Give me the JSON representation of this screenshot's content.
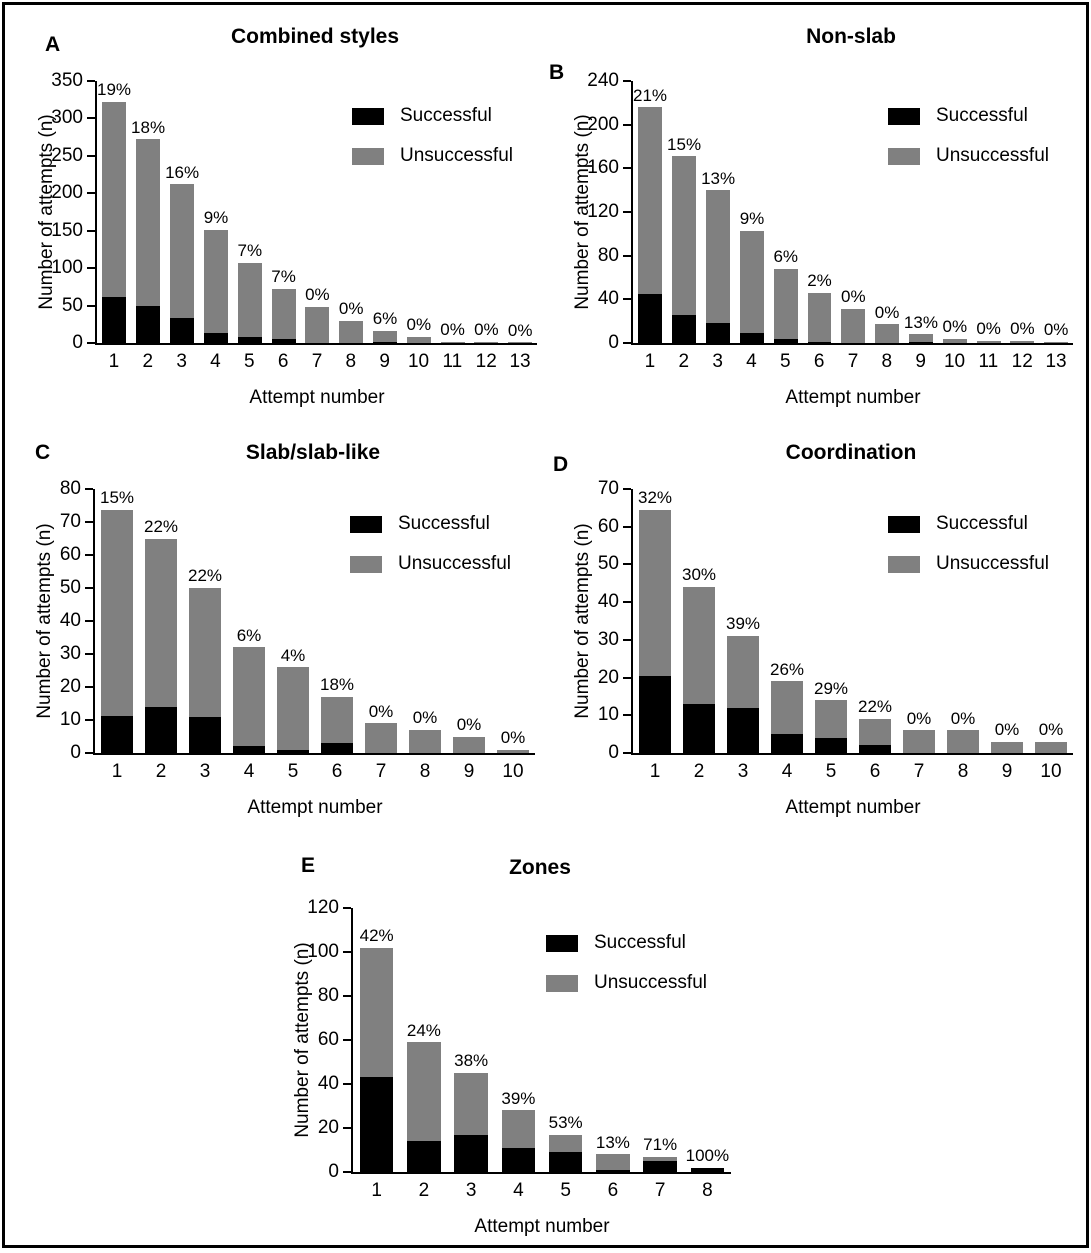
{
  "figure": {
    "background": "#ffffff",
    "border_color": "#000000",
    "colors": {
      "successful": "#000000",
      "unsuccessful": "#808080"
    },
    "legend": {
      "successful_label": "Successful",
      "unsuccessful_label": "Unsuccessful"
    }
  },
  "chart_data": [
    {
      "type": "bar",
      "stacked": true,
      "panel_label": "A",
      "title": "Combined styles",
      "xlabel": "Attempt number",
      "ylabel": "Number of attempts (n)",
      "ylim": [
        0,
        350
      ],
      "ytick_step": 50,
      "grid": false,
      "legend_position": "top-right",
      "categories": [
        "1",
        "2",
        "3",
        "4",
        "5",
        "6",
        "7",
        "8",
        "9",
        "10",
        "11",
        "12",
        "13"
      ],
      "series": [
        {
          "name": "Successful",
          "color": "#000000",
          "values": [
            64,
            49,
            33,
            13,
            8,
            5,
            0,
            0,
            1,
            0,
            0,
            0,
            0
          ]
        },
        {
          "name": "Unsuccessful",
          "color": "#808080",
          "values": [
            272,
            223,
            179,
            138,
            99,
            67,
            48,
            30,
            15,
            8,
            2,
            2,
            1
          ]
        }
      ],
      "totals": [
        336,
        272,
        212,
        151,
        107,
        72,
        48,
        30,
        16,
        8,
        2,
        2,
        1
      ],
      "percent_labels": [
        "19%",
        "18%",
        "16%",
        "9%",
        "7%",
        "7%",
        "0%",
        "0%",
        "6%",
        "0%",
        "0%",
        "0%",
        "0%"
      ]
    },
    {
      "type": "bar",
      "stacked": true,
      "panel_label": "B",
      "title": "Non-slab",
      "xlabel": "Attempt number",
      "ylabel": "Number of attempts (n)",
      "ylim": [
        0,
        240
      ],
      "ytick_step": 40,
      "grid": false,
      "legend_position": "top-right",
      "categories": [
        "1",
        "2",
        "3",
        "4",
        "5",
        "6",
        "7",
        "8",
        "9",
        "10",
        "11",
        "12",
        "13"
      ],
      "series": [
        {
          "name": "Successful",
          "color": "#000000",
          "values": [
            45,
            26,
            18,
            9,
            4,
            1,
            0,
            0,
            1,
            0,
            0,
            0,
            0
          ]
        },
        {
          "name": "Unsuccessful",
          "color": "#808080",
          "values": [
            171,
            145,
            122,
            94,
            64,
            45,
            31,
            17,
            7,
            4,
            2,
            2,
            1
          ]
        }
      ],
      "totals": [
        216,
        171,
        140,
        103,
        68,
        46,
        31,
        17,
        8,
        4,
        2,
        2,
        1
      ],
      "percent_labels": [
        "21%",
        "15%",
        "13%",
        "9%",
        "6%",
        "2%",
        "0%",
        "0%",
        "13%",
        "0%",
        "0%",
        "0%",
        "0%"
      ]
    },
    {
      "type": "bar",
      "stacked": true,
      "panel_label": "C",
      "title": "Slab/slab-like",
      "xlabel": "Attempt number",
      "ylabel": "Number of attempts (n)",
      "ylim": [
        0,
        80
      ],
      "ytick_step": 10,
      "grid": false,
      "legend_position": "top-right",
      "categories": [
        "1",
        "2",
        "3",
        "4",
        "5",
        "6",
        "7",
        "8",
        "9",
        "10"
      ],
      "series": [
        {
          "name": "Successful",
          "color": "#000000",
          "values": [
            12,
            14,
            11,
            2,
            1,
            3,
            0,
            0,
            0,
            0
          ]
        },
        {
          "name": "Unsuccessful",
          "color": "#808080",
          "values": [
            66,
            51,
            39,
            30,
            25,
            14,
            9,
            7,
            5,
            1
          ]
        }
      ],
      "totals": [
        78,
        65,
        50,
        32,
        26,
        17,
        9,
        7,
        5,
        1
      ],
      "percent_labels": [
        "15%",
        "22%",
        "22%",
        "6%",
        "4%",
        "18%",
        "0%",
        "0%",
        "0%",
        "0%"
      ]
    },
    {
      "type": "bar",
      "stacked": true,
      "panel_label": "D",
      "title": "Coordination",
      "xlabel": "Attempt number",
      "ylabel": "Number of attempts (n)",
      "ylim": [
        0,
        70
      ],
      "ytick_step": 10,
      "grid": false,
      "legend_position": "top-right",
      "categories": [
        "1",
        "2",
        "3",
        "4",
        "5",
        "6",
        "7",
        "8",
        "9",
        "10"
      ],
      "series": [
        {
          "name": "Successful",
          "color": "#000000",
          "values": [
            21,
            13,
            12,
            5,
            4,
            2,
            0,
            0,
            0,
            0
          ]
        },
        {
          "name": "Unsuccessful",
          "color": "#808080",
          "values": [
            45,
            31,
            19,
            14,
            10,
            7,
            6,
            6,
            3,
            3
          ]
        }
      ],
      "totals": [
        66,
        44,
        31,
        19,
        14,
        9,
        6,
        6,
        3,
        3
      ],
      "percent_labels": [
        "32%",
        "30%",
        "39%",
        "26%",
        "29%",
        "22%",
        "0%",
        "0%",
        "0%",
        "0%"
      ]
    },
    {
      "type": "bar",
      "stacked": true,
      "panel_label": "E",
      "title": "Zones",
      "xlabel": "Attempt number",
      "ylabel": "Number of attempts (n)",
      "ylim": [
        0,
        120
      ],
      "ytick_step": 20,
      "grid": false,
      "legend_position": "top-right",
      "categories": [
        "1",
        "2",
        "3",
        "4",
        "5",
        "6",
        "7",
        "8"
      ],
      "series": [
        {
          "name": "Successful",
          "color": "#000000",
          "values": [
            43,
            14,
            17,
            11,
            9,
            1,
            5,
            2
          ]
        },
        {
          "name": "Unsuccessful",
          "color": "#808080",
          "values": [
            59,
            45,
            28,
            17,
            8,
            7,
            2,
            0
          ]
        }
      ],
      "totals": [
        102,
        59,
        45,
        28,
        17,
        8,
        7,
        2
      ],
      "percent_labels": [
        "42%",
        "24%",
        "38%",
        "39%",
        "53%",
        "13%",
        "71%",
        "100%"
      ]
    }
  ]
}
